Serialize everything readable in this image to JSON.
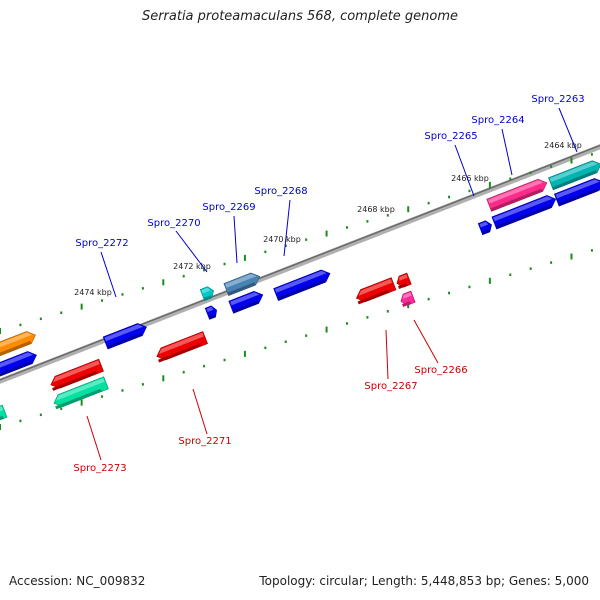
{
  "title": "Serratia proteamaculans 568, complete genome",
  "footer": {
    "accession": "Accession: NC_009832",
    "summary": "Topology: circular; Length: 5,448,853 bp; Genes: 5,000"
  },
  "colors": {
    "backbone": "#8a8a8a",
    "tick": "#1f8a1f",
    "label_top": "#0000cc",
    "label_bottom": "#cc0000",
    "scale_text": "#222222"
  },
  "scale_labels": [
    {
      "text": "2464 kbp"
    },
    {
      "text": "2466 kbp"
    },
    {
      "text": "2468 kbp"
    },
    {
      "text": "2470 kbp"
    },
    {
      "text": "2472 kbp"
    },
    {
      "text": "2474 kbp"
    }
  ],
  "gene_labels_top": [
    {
      "text": "Spro_2263"
    },
    {
      "text": "Spro_2264"
    },
    {
      "text": "Spro_2265"
    },
    {
      "text": "Spro_2268"
    },
    {
      "text": "Spro_2269"
    },
    {
      "text": "Spro_2270"
    },
    {
      "text": "Spro_2272"
    }
  ],
  "gene_labels_bottom": [
    {
      "text": "Spro_2266"
    },
    {
      "text": "Spro_2267"
    },
    {
      "text": "Spro_2271"
    },
    {
      "text": "Spro_2273"
    }
  ],
  "genes": [
    {
      "color": "#0000ee",
      "strand": "+"
    },
    {
      "color": "#0000ee",
      "strand": "+"
    },
    {
      "color": "#0000ee",
      "strand": "+"
    },
    {
      "color": "#0000ee",
      "strand": "+"
    },
    {
      "color": "#0000ee",
      "strand": "+"
    },
    {
      "color": "#0000ee",
      "strand": "+"
    },
    {
      "color": "#0000ee",
      "strand": "+"
    },
    {
      "color": "#0000ee",
      "strand": "+"
    },
    {
      "color": "#ff8c00",
      "strand": "+"
    },
    {
      "color": "#4682b4",
      "strand": "+"
    },
    {
      "color": "#00c8c8",
      "strand": "+"
    },
    {
      "color": "#00b4b4",
      "strand": "+"
    },
    {
      "color": "#ff2a8a",
      "strand": "+"
    },
    {
      "color": "#ee0000",
      "strand": "-"
    },
    {
      "color": "#ee0000",
      "strand": "-"
    },
    {
      "color": "#ee0000",
      "strand": "-"
    },
    {
      "color": "#ee0000",
      "strand": "-"
    },
    {
      "color": "#ff2a9a",
      "strand": "-"
    },
    {
      "color": "#00e0a0",
      "strand": "-"
    },
    {
      "color": "#00e0a0",
      "strand": "-"
    }
  ]
}
